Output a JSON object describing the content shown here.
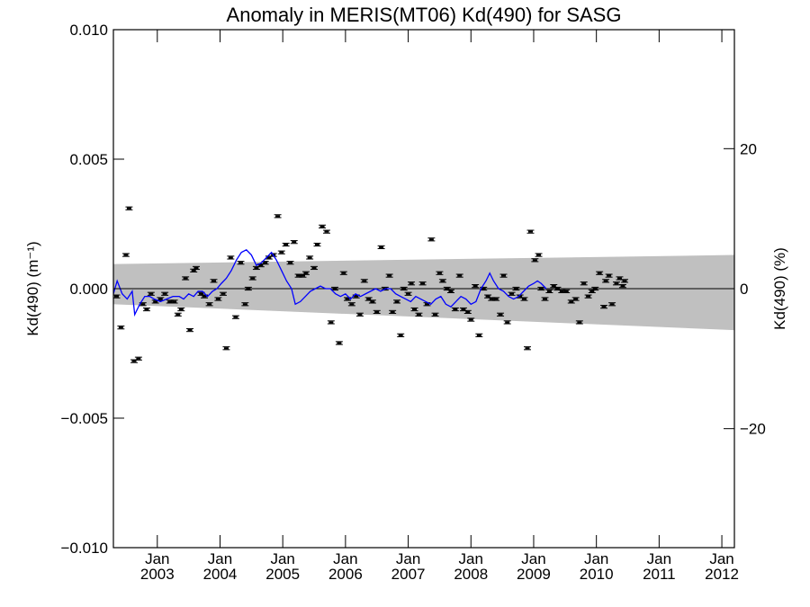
{
  "chart_data": {
    "type": "scatter",
    "title": "Anomaly in MERIS(MT06) Kd(490) for SASG",
    "ylabel_left": "Kd(490) (m⁻¹)",
    "ylabel_right": "Kd(490) (%)",
    "ylim_left": [
      -0.01,
      0.01
    ],
    "ylim_right": [
      -37,
      37
    ],
    "yticks_left": [
      "0.010",
      "0.005",
      "0.000",
      "−0.005",
      "−0.010"
    ],
    "yticks_left_values": [
      0.01,
      0.005,
      0.0,
      -0.005,
      -0.01
    ],
    "yticks_right": [
      "20",
      "0",
      "−20"
    ],
    "yticks_right_values": [
      20,
      0,
      -20
    ],
    "xlim": [
      2002.3,
      2012.2
    ],
    "xticks": [
      {
        "top": "Jan",
        "bottom": "2003",
        "x": 2003.0
      },
      {
        "top": "Jan",
        "bottom": "2004",
        "x": 2004.0
      },
      {
        "top": "Jan",
        "bottom": "2005",
        "x": 2005.0
      },
      {
        "top": "Jan",
        "bottom": "2006",
        "x": 2006.0
      },
      {
        "top": "Jan",
        "bottom": "2007",
        "x": 2007.0
      },
      {
        "top": "Jan",
        "bottom": "2008",
        "x": 2008.0
      },
      {
        "top": "Jan",
        "bottom": "2009",
        "x": 2009.0
      },
      {
        "top": "Jan",
        "bottom": "2010",
        "x": 2010.0
      },
      {
        "top": "Jan",
        "bottom": "2011",
        "x": 2011.0
      },
      {
        "top": "Jan",
        "bottom": "2012",
        "x": 2012.0
      }
    ],
    "band": {
      "x": [
        2002.3,
        2012.2
      ],
      "upper": [
        0.00095,
        0.0013
      ],
      "lower": [
        -0.0006,
        -0.0016
      ],
      "color": "#c0c0c0"
    },
    "zero_line": 0.0,
    "series": [
      {
        "kind": "points_with_errorbars",
        "color": "#000000",
        "points": [
          [
            2002.35,
            -0.0003
          ],
          [
            2002.42,
            -0.0015
          ],
          [
            2002.5,
            0.0013
          ],
          [
            2002.55,
            0.0031
          ],
          [
            2002.63,
            -0.0028
          ],
          [
            2002.7,
            -0.0027
          ],
          [
            2002.77,
            -0.0006
          ],
          [
            2002.83,
            -0.0008
          ],
          [
            2002.9,
            -0.0002
          ],
          [
            2002.97,
            -0.0005
          ],
          [
            2003.05,
            -0.0004
          ],
          [
            2003.12,
            -0.0002
          ],
          [
            2003.2,
            -0.0005
          ],
          [
            2003.27,
            -0.0005
          ],
          [
            2003.33,
            -0.001
          ],
          [
            2003.38,
            -0.0008
          ],
          [
            2003.45,
            0.0004
          ],
          [
            2003.52,
            -0.0016
          ],
          [
            2003.58,
            0.0007
          ],
          [
            2003.62,
            0.0008
          ],
          [
            2003.7,
            -0.0002
          ],
          [
            2003.75,
            -0.0003
          ],
          [
            2003.83,
            -0.0006
          ],
          [
            2003.9,
            0.0003
          ],
          [
            2003.97,
            -0.0004
          ],
          [
            2004.05,
            -0.0002
          ],
          [
            2004.1,
            -0.0023
          ],
          [
            2004.17,
            0.0012
          ],
          [
            2004.25,
            -0.0011
          ],
          [
            2004.33,
            0.001
          ],
          [
            2004.4,
            -0.0006
          ],
          [
            2004.45,
            0.0
          ],
          [
            2004.52,
            0.0004
          ],
          [
            2004.58,
            0.0008
          ],
          [
            2004.65,
            0.0009
          ],
          [
            2004.72,
            0.001
          ],
          [
            2004.78,
            0.0012
          ],
          [
            2004.85,
            0.0013
          ],
          [
            2004.92,
            0.0028
          ],
          [
            2004.98,
            0.0014
          ],
          [
            2005.05,
            0.0017
          ],
          [
            2005.12,
            0.001
          ],
          [
            2005.18,
            0.0018
          ],
          [
            2005.25,
            0.0005
          ],
          [
            2005.32,
            0.0005
          ],
          [
            2005.37,
            0.0006
          ],
          [
            2005.43,
            0.0012
          ],
          [
            2005.5,
            0.0008
          ],
          [
            2005.55,
            0.0017
          ],
          [
            2005.63,
            0.0024
          ],
          [
            2005.7,
            0.0022
          ],
          [
            2005.77,
            -0.0013
          ],
          [
            2005.83,
            0.0
          ],
          [
            2005.9,
            -0.0021
          ],
          [
            2005.97,
            0.0006
          ],
          [
            2006.03,
            -0.0004
          ],
          [
            2006.1,
            -0.0006
          ],
          [
            2006.17,
            -0.0003
          ],
          [
            2006.23,
            -0.001
          ],
          [
            2006.3,
            0.0003
          ],
          [
            2006.37,
            -0.0004
          ],
          [
            2006.43,
            -0.0005
          ],
          [
            2006.5,
            -0.0009
          ],
          [
            2006.57,
            0.0016
          ],
          [
            2006.63,
            0.0
          ],
          [
            2006.7,
            0.0005
          ],
          [
            2006.75,
            -0.0009
          ],
          [
            2006.82,
            -0.0005
          ],
          [
            2006.88,
            -0.0018
          ],
          [
            2006.93,
            0.0
          ],
          [
            2007.0,
            -0.0002
          ],
          [
            2007.05,
            0.0002
          ],
          [
            2007.1,
            -0.0008
          ],
          [
            2007.17,
            -0.001
          ],
          [
            2007.23,
            0.0002
          ],
          [
            2007.3,
            -0.0006
          ],
          [
            2007.37,
            0.0019
          ],
          [
            2007.43,
            -0.001
          ],
          [
            2007.5,
            0.0006
          ],
          [
            2007.55,
            0.0003
          ],
          [
            2007.62,
            0.0
          ],
          [
            2007.68,
            -0.0001
          ],
          [
            2007.75,
            -0.0008
          ],
          [
            2007.82,
            0.0005
          ],
          [
            2007.88,
            -0.0008
          ],
          [
            2007.95,
            -0.0009
          ],
          [
            2008.0,
            -0.0012
          ],
          [
            2008.07,
            0.0001
          ],
          [
            2008.13,
            -0.0018
          ],
          [
            2008.2,
            0.0
          ],
          [
            2008.27,
            -0.0003
          ],
          [
            2008.33,
            -0.0004
          ],
          [
            2008.4,
            -0.0004
          ],
          [
            2008.47,
            -0.001
          ],
          [
            2008.52,
            0.0005
          ],
          [
            2008.58,
            -0.0013
          ],
          [
            2008.65,
            -0.0002
          ],
          [
            2008.72,
            0.0
          ],
          [
            2008.78,
            -0.0003
          ],
          [
            2008.85,
            -0.0004
          ],
          [
            2008.9,
            -0.0023
          ],
          [
            2008.95,
            0.0022
          ],
          [
            2009.02,
            0.0011
          ],
          [
            2009.08,
            0.0013
          ],
          [
            2009.12,
            0.0
          ],
          [
            2009.18,
            -0.0004
          ],
          [
            2009.25,
            -0.0001
          ],
          [
            2009.32,
            0.0001
          ],
          [
            2009.38,
            0.0
          ],
          [
            2009.45,
            -0.0001
          ],
          [
            2009.52,
            -0.0001
          ],
          [
            2009.6,
            -0.0005
          ],
          [
            2009.67,
            -0.0004
          ],
          [
            2009.73,
            -0.0013
          ],
          [
            2009.8,
            0.0002
          ],
          [
            2009.87,
            -0.0003
          ],
          [
            2009.93,
            -0.0001
          ],
          [
            2009.98,
            0.0
          ],
          [
            2010.05,
            0.0006
          ],
          [
            2010.12,
            -0.0007
          ],
          [
            2010.15,
            0.0003
          ],
          [
            2010.2,
            0.0005
          ],
          [
            2010.25,
            -0.0006
          ],
          [
            2010.32,
            0.0002
          ],
          [
            2010.37,
            0.0004
          ],
          [
            2010.42,
            0.0001
          ],
          [
            2010.45,
            0.0003
          ]
        ]
      },
      {
        "kind": "line",
        "color": "#0000ff",
        "points": [
          [
            2002.3,
            -0.0002
          ],
          [
            2002.36,
            0.0003
          ],
          [
            2002.44,
            -0.0002
          ],
          [
            2002.52,
            -0.0004
          ],
          [
            2002.6,
            -0.0001
          ],
          [
            2002.64,
            -0.001
          ],
          [
            2002.68,
            -0.0008
          ],
          [
            2002.72,
            -0.0006
          ],
          [
            2002.8,
            -0.0003
          ],
          [
            2002.88,
            -0.0003
          ],
          [
            2002.95,
            -0.0004
          ],
          [
            2003.05,
            -0.0005
          ],
          [
            2003.15,
            -0.0004
          ],
          [
            2003.25,
            -0.0003
          ],
          [
            2003.35,
            -0.0003
          ],
          [
            2003.42,
            -0.0004
          ],
          [
            2003.5,
            -0.0002
          ],
          [
            2003.58,
            -0.0003
          ],
          [
            2003.65,
            -0.0001
          ],
          [
            2003.72,
            -0.0001
          ],
          [
            2003.8,
            -0.0003
          ],
          [
            2003.88,
            -0.0001
          ],
          [
            2003.95,
            0.0
          ],
          [
            2004.02,
            0.0002
          ],
          [
            2004.1,
            0.0004
          ],
          [
            2004.18,
            0.0007
          ],
          [
            2004.26,
            0.0011
          ],
          [
            2004.34,
            0.0014
          ],
          [
            2004.42,
            0.0015
          ],
          [
            2004.5,
            0.0013
          ],
          [
            2004.58,
            0.0009
          ],
          [
            2004.66,
            0.001
          ],
          [
            2004.74,
            0.0012
          ],
          [
            2004.82,
            0.0014
          ],
          [
            2004.9,
            0.0011
          ],
          [
            2004.98,
            0.0007
          ],
          [
            2005.06,
            0.0003
          ],
          [
            2005.14,
            0.0
          ],
          [
            2005.2,
            -0.0006
          ],
          [
            2005.28,
            -0.0005
          ],
          [
            2005.36,
            -0.0003
          ],
          [
            2005.44,
            -0.0001
          ],
          [
            2005.52,
            0.0
          ],
          [
            2005.6,
            0.0001
          ],
          [
            2005.68,
            0.0
          ],
          [
            2005.76,
            0.0
          ],
          [
            2005.84,
            -0.0002
          ],
          [
            2005.92,
            -0.0003
          ],
          [
            2006.0,
            -0.0002
          ],
          [
            2006.08,
            -0.0004
          ],
          [
            2006.16,
            -0.0002
          ],
          [
            2006.24,
            -0.0003
          ],
          [
            2006.32,
            -0.0002
          ],
          [
            2006.4,
            -0.0001
          ],
          [
            2006.48,
            0.0
          ],
          [
            2006.56,
            -0.0001
          ],
          [
            2006.64,
            0.0
          ],
          [
            2006.72,
            0.0
          ],
          [
            2006.8,
            -0.0002
          ],
          [
            2006.88,
            -0.0003
          ],
          [
            2006.96,
            -0.0004
          ],
          [
            2007.04,
            -0.0005
          ],
          [
            2007.12,
            -0.0003
          ],
          [
            2007.2,
            -0.0004
          ],
          [
            2007.28,
            -0.0005
          ],
          [
            2007.36,
            -0.0006
          ],
          [
            2007.44,
            -0.0004
          ],
          [
            2007.52,
            -0.0003
          ],
          [
            2007.6,
            -0.0006
          ],
          [
            2007.68,
            -0.0007
          ],
          [
            2007.76,
            -0.0005
          ],
          [
            2007.84,
            -0.0003
          ],
          [
            2007.92,
            -0.0004
          ],
          [
            2008.0,
            -0.0006
          ],
          [
            2008.08,
            -0.0005
          ],
          [
            2008.16,
            0.0
          ],
          [
            2008.24,
            0.0003
          ],
          [
            2008.3,
            0.0006
          ],
          [
            2008.36,
            0.0003
          ],
          [
            2008.44,
            0.0
          ],
          [
            2008.52,
            -0.0001
          ],
          [
            2008.6,
            -0.0003
          ],
          [
            2008.68,
            -0.0004
          ],
          [
            2008.76,
            -0.0003
          ],
          [
            2008.84,
            -0.0001
          ],
          [
            2008.92,
            0.0001
          ],
          [
            2009.0,
            0.0002
          ],
          [
            2009.06,
            0.0003
          ],
          [
            2009.12,
            0.0002
          ],
          [
            2009.2,
            0.0
          ]
        ]
      }
    ]
  }
}
